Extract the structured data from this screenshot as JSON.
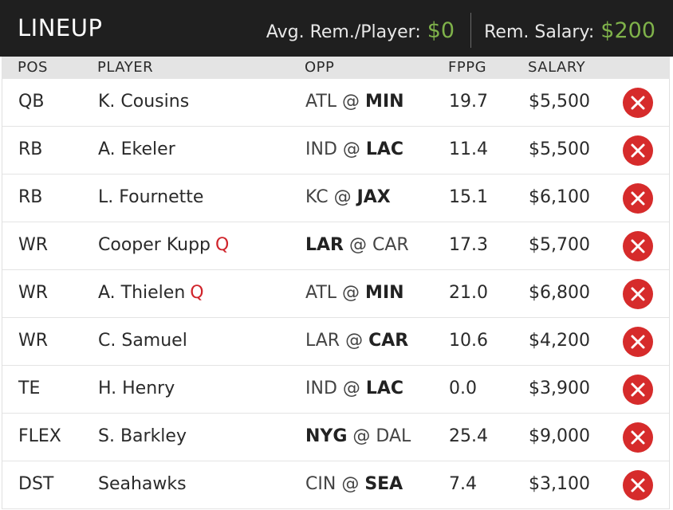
{
  "header": {
    "title": "LINEUP",
    "avg_label": "Avg. Rem./Player:",
    "avg_value": "$0",
    "rem_label": "Rem. Salary:",
    "rem_value": "$200"
  },
  "columns": {
    "pos": "POS",
    "player": "PLAYER",
    "opp": "OPP",
    "fppg": "FPPG",
    "salary": "SALARY"
  },
  "colors": {
    "header_bg": "#1f1f1f",
    "money_green": "#7fb24a",
    "remove_red": "#d62b2b",
    "injury_red": "#d0242b"
  },
  "rows": [
    {
      "pos": "QB",
      "player": "K. Cousins",
      "status": "",
      "away": "ATL",
      "at": "@",
      "home": "MIN",
      "team_side": "home",
      "fppg": "19.7",
      "salary": "$5,500"
    },
    {
      "pos": "RB",
      "player": "A. Ekeler",
      "status": "",
      "away": "IND",
      "at": "@",
      "home": "LAC",
      "team_side": "home",
      "fppg": "11.4",
      "salary": "$5,500"
    },
    {
      "pos": "RB",
      "player": "L. Fournette",
      "status": "",
      "away": "KC",
      "at": "@",
      "home": "JAX",
      "team_side": "home",
      "fppg": "15.1",
      "salary": "$6,100"
    },
    {
      "pos": "WR",
      "player": "Cooper Kupp",
      "status": "Q",
      "away": "LAR",
      "at": "@",
      "home": "CAR",
      "team_side": "away",
      "fppg": "17.3",
      "salary": "$5,700"
    },
    {
      "pos": "WR",
      "player": "A. Thielen",
      "status": "Q",
      "away": "ATL",
      "at": "@",
      "home": "MIN",
      "team_side": "home",
      "fppg": "21.0",
      "salary": "$6,800"
    },
    {
      "pos": "WR",
      "player": "C. Samuel",
      "status": "",
      "away": "LAR",
      "at": "@",
      "home": "CAR",
      "team_side": "home",
      "fppg": "10.6",
      "salary": "$4,200"
    },
    {
      "pos": "TE",
      "player": "H. Henry",
      "status": "",
      "away": "IND",
      "at": "@",
      "home": "LAC",
      "team_side": "home",
      "fppg": "0.0",
      "salary": "$3,900"
    },
    {
      "pos": "FLEX",
      "player": "S. Barkley",
      "status": "",
      "away": "NYG",
      "at": "@",
      "home": "DAL",
      "team_side": "away",
      "fppg": "25.4",
      "salary": "$9,000"
    },
    {
      "pos": "DST",
      "player": "Seahawks",
      "status": "",
      "away": "CIN",
      "at": "@",
      "home": "SEA",
      "team_side": "home",
      "fppg": "7.4",
      "salary": "$3,100"
    }
  ]
}
